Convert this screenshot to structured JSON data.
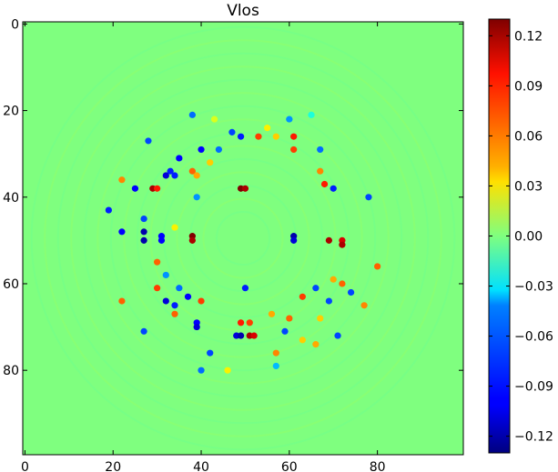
{
  "chart_data": {
    "type": "heatmap",
    "title": "Vlos",
    "xlabel": "",
    "ylabel": "",
    "grid_size": [
      100,
      100
    ],
    "xlim": [
      0,
      99
    ],
    "ylim": [
      0,
      99
    ],
    "x_ticks": [
      0,
      20,
      40,
      60,
      80
    ],
    "x_tick_labels": [
      "0",
      "20",
      "40",
      "60",
      "80"
    ],
    "y_ticks": [
      0,
      20,
      40,
      60,
      80
    ],
    "y_tick_labels": [
      "0",
      "20",
      "40",
      "60",
      "80"
    ],
    "y_axis_inverted": true,
    "background_value": 0.0,
    "colormap": "jet",
    "colorbar": {
      "vmin": -0.13,
      "vmax": 0.13,
      "ticks": [
        0.12,
        0.09,
        0.06,
        0.03,
        0.0,
        -0.03,
        -0.06,
        -0.09,
        -0.12
      ],
      "tick_labels": [
        "0.12",
        "0.09",
        "0.06",
        "0.03",
        "0.00",
        "−0.03",
        "−0.06",
        "−0.09",
        "−0.12"
      ]
    },
    "points": [
      {
        "x": 38,
        "y": 21,
        "v": -0.07
      },
      {
        "x": 43,
        "y": 22,
        "v": 0.03
      },
      {
        "x": 60,
        "y": 22,
        "v": -0.06
      },
      {
        "x": 65,
        "y": 21,
        "v": -0.03
      },
      {
        "x": 55,
        "y": 24,
        "v": 0.04
      },
      {
        "x": 47,
        "y": 25,
        "v": -0.08
      },
      {
        "x": 49,
        "y": 26,
        "v": -0.09
      },
      {
        "x": 53,
        "y": 26,
        "v": 0.09
      },
      {
        "x": 57,
        "y": 26,
        "v": 0.05
      },
      {
        "x": 61,
        "y": 26,
        "v": 0.1
      },
      {
        "x": 28,
        "y": 27,
        "v": -0.08
      },
      {
        "x": 40,
        "y": 29,
        "v": -0.1
      },
      {
        "x": 44,
        "y": 29,
        "v": -0.07
      },
      {
        "x": 61,
        "y": 29,
        "v": 0.09
      },
      {
        "x": 67,
        "y": 29,
        "v": -0.07
      },
      {
        "x": 35,
        "y": 31,
        "v": -0.1
      },
      {
        "x": 42,
        "y": 32,
        "v": 0.05
      },
      {
        "x": 33,
        "y": 34,
        "v": -0.09
      },
      {
        "x": 38,
        "y": 34,
        "v": 0.08
      },
      {
        "x": 32,
        "y": 35,
        "v": -0.11
      },
      {
        "x": 34,
        "y": 35,
        "v": -0.09
      },
      {
        "x": 39,
        "y": 35,
        "v": 0.06
      },
      {
        "x": 67,
        "y": 34,
        "v": 0.07
      },
      {
        "x": 22,
        "y": 36,
        "v": 0.07
      },
      {
        "x": 25,
        "y": 38,
        "v": -0.1
      },
      {
        "x": 29,
        "y": 38,
        "v": 0.12
      },
      {
        "x": 30,
        "y": 38,
        "v": 0.1
      },
      {
        "x": 49,
        "y": 38,
        "v": 0.13
      },
      {
        "x": 50,
        "y": 38,
        "v": 0.12
      },
      {
        "x": 68,
        "y": 37,
        "v": 0.1
      },
      {
        "x": 70,
        "y": 38,
        "v": -0.09
      },
      {
        "x": 39,
        "y": 40,
        "v": -0.06
      },
      {
        "x": 78,
        "y": 40,
        "v": -0.08
      },
      {
        "x": 19,
        "y": 43,
        "v": -0.09
      },
      {
        "x": 27,
        "y": 45,
        "v": -0.08
      },
      {
        "x": 34,
        "y": 47,
        "v": 0.04
      },
      {
        "x": 22,
        "y": 48,
        "v": -0.1
      },
      {
        "x": 27,
        "y": 48,
        "v": -0.12
      },
      {
        "x": 27,
        "y": 50,
        "v": -0.12
      },
      {
        "x": 31,
        "y": 49,
        "v": -0.1
      },
      {
        "x": 31,
        "y": 50,
        "v": -0.1
      },
      {
        "x": 38,
        "y": 49,
        "v": 0.13
      },
      {
        "x": 38,
        "y": 50,
        "v": 0.12
      },
      {
        "x": 61,
        "y": 49,
        "v": -0.12
      },
      {
        "x": 61,
        "y": 50,
        "v": -0.11
      },
      {
        "x": 69,
        "y": 50,
        "v": 0.12
      },
      {
        "x": 72,
        "y": 50,
        "v": 0.11
      },
      {
        "x": 72,
        "y": 51,
        "v": 0.12
      },
      {
        "x": 30,
        "y": 55,
        "v": 0.08
      },
      {
        "x": 32,
        "y": 58,
        "v": -0.06
      },
      {
        "x": 80,
        "y": 56,
        "v": 0.08
      },
      {
        "x": 70,
        "y": 59,
        "v": 0.06
      },
      {
        "x": 30,
        "y": 61,
        "v": 0.09
      },
      {
        "x": 35,
        "y": 61,
        "v": -0.07
      },
      {
        "x": 50,
        "y": 61,
        "v": -0.09
      },
      {
        "x": 66,
        "y": 61,
        "v": -0.08
      },
      {
        "x": 72,
        "y": 60,
        "v": 0.08
      },
      {
        "x": 74,
        "y": 62,
        "v": -0.08
      },
      {
        "x": 22,
        "y": 64,
        "v": 0.08
      },
      {
        "x": 32,
        "y": 64,
        "v": -0.11
      },
      {
        "x": 34,
        "y": 65,
        "v": -0.09
      },
      {
        "x": 37,
        "y": 63,
        "v": -0.1
      },
      {
        "x": 40,
        "y": 64,
        "v": 0.09
      },
      {
        "x": 63,
        "y": 63,
        "v": 0.09
      },
      {
        "x": 69,
        "y": 64,
        "v": -0.08
      },
      {
        "x": 77,
        "y": 65,
        "v": 0.07
      },
      {
        "x": 34,
        "y": 67,
        "v": 0.08
      },
      {
        "x": 56,
        "y": 67,
        "v": 0.06
      },
      {
        "x": 60,
        "y": 68,
        "v": 0.08
      },
      {
        "x": 67,
        "y": 68,
        "v": 0.05
      },
      {
        "x": 39,
        "y": 69,
        "v": -0.1
      },
      {
        "x": 39,
        "y": 70,
        "v": -0.11
      },
      {
        "x": 49,
        "y": 69,
        "v": 0.1
      },
      {
        "x": 51,
        "y": 69,
        "v": 0.09
      },
      {
        "x": 59,
        "y": 71,
        "v": -0.08
      },
      {
        "x": 27,
        "y": 71,
        "v": -0.08
      },
      {
        "x": 71,
        "y": 72,
        "v": -0.08
      },
      {
        "x": 48,
        "y": 72,
        "v": -0.11
      },
      {
        "x": 49,
        "y": 72,
        "v": -0.12
      },
      {
        "x": 51,
        "y": 72,
        "v": 0.12
      },
      {
        "x": 52,
        "y": 72,
        "v": 0.11
      },
      {
        "x": 63,
        "y": 73,
        "v": 0.05
      },
      {
        "x": 66,
        "y": 74,
        "v": 0.06
      },
      {
        "x": 42,
        "y": 76,
        "v": -0.08
      },
      {
        "x": 57,
        "y": 76,
        "v": 0.07
      },
      {
        "x": 40,
        "y": 80,
        "v": -0.07
      },
      {
        "x": 46,
        "y": 80,
        "v": 0.04
      },
      {
        "x": 57,
        "y": 79,
        "v": -0.05
      }
    ]
  }
}
